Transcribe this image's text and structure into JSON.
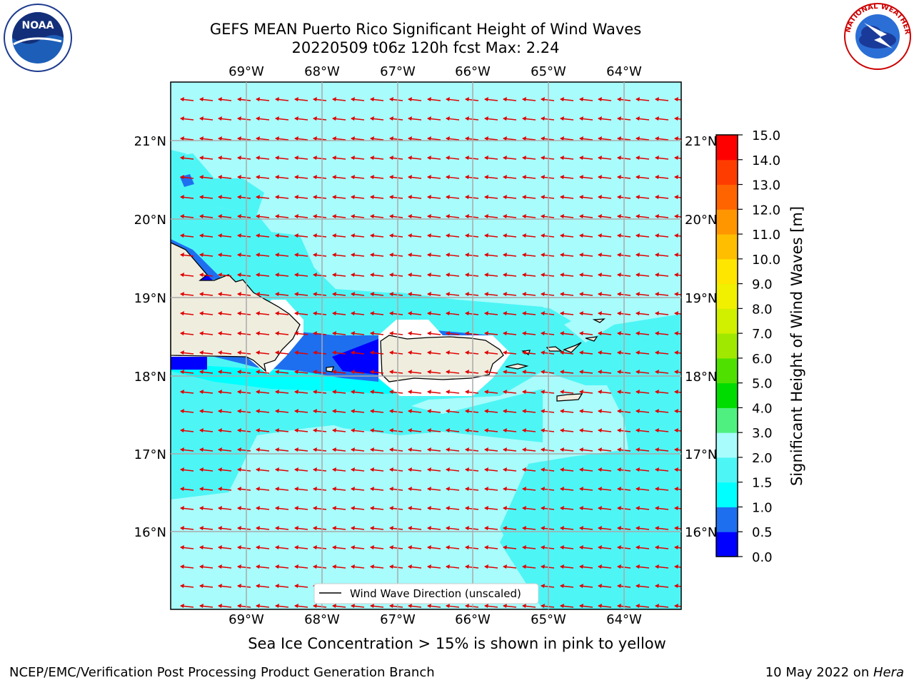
{
  "header": {
    "title_line1": "GEFS MEAN Puerto Rico Significant Height of Wind Waves",
    "title_line2": "20220509 t06z 120h fcst   Max: 2.24"
  },
  "logos": {
    "noaa_text": "NOAA",
    "noaa_ring": "NATIONAL OCEANIC AND ATMOSPHERIC ADMINISTRATION · U.S. DEPARTMENT OF COMMERCE",
    "nws_ring": "NATIONAL WEATHER SERVICE"
  },
  "map": {
    "lon_labels": [
      "69°W",
      "68°W",
      "67°W",
      "66°W",
      "65°W",
      "64°W"
    ],
    "lat_labels": [
      "21°N",
      "20°N",
      "19°N",
      "18°N",
      "17°N",
      "16°N"
    ],
    "legend_label": "Wind Wave Direction (unscaled)",
    "colors": {
      "land": "#efedde",
      "level_0_05": "#0000ff",
      "level_05_1": "#1e6ff0",
      "level_1_15": "#00ffff",
      "level_15_2": "#4ef5f5",
      "level_2_3": "#a8fcfc",
      "arrow": "#e00000"
    }
  },
  "colorbar": {
    "label": "Significant Height of Wind Waves [m]",
    "ticks": [
      "0.0",
      "0.5",
      "1.0",
      "1.5",
      "2.0",
      "3.0",
      "4.0",
      "5.0",
      "6.0",
      "7.0",
      "8.0",
      "9.0",
      "10.0",
      "11.0",
      "12.0",
      "13.0",
      "14.0",
      "15.0"
    ],
    "colors": [
      "#0000ff",
      "#1e6ff0",
      "#00ffff",
      "#4ef5f5",
      "#a8fcfc",
      "#50f080",
      "#00dc00",
      "#50e000",
      "#a0e800",
      "#d0f000",
      "#f0f000",
      "#ffe600",
      "#ffbe00",
      "#ff9600",
      "#ff6400",
      "#ff3c00",
      "#ff0000"
    ]
  },
  "notes": {
    "sea_ice": "Sea Ice Concentration > 15% is shown in pink to yellow",
    "footer_left": "NCEP/EMC/Verification Post Processing Product Generation Branch",
    "footer_right_date": "10 May 2022 on ",
    "footer_right_machine": "Hera"
  }
}
